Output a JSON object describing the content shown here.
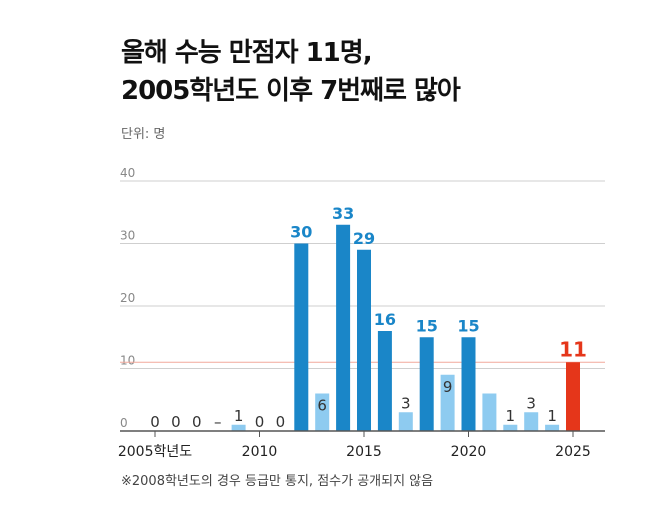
{
  "title_line1": "올해 수능 만점자 11명,",
  "title_line2": "2005학년도 이후 7번째로 많아",
  "unit_label": "단위: 명",
  "footnote": "※2008학년도의 경우 등급만 통지, 점수가 공개되지 않음",
  "colors": {
    "dark_blue": "#1a86c8",
    "light_blue": "#8ecbf0",
    "highlight_red": "#e5361a",
    "label_blue": "#1a86c8",
    "label_gray": "#333333",
    "grid": "#cfcfcf",
    "axis_text": "#888888"
  },
  "chart_data": {
    "type": "bar",
    "categories": [
      "2005",
      "2006",
      "2007",
      "2008",
      "2009",
      "2010",
      "2011",
      "2012",
      "2013",
      "2014",
      "2015",
      "2016",
      "2017",
      "2018",
      "2019",
      "2020",
      "2021",
      "2022",
      "2023",
      "2024",
      "2025"
    ],
    "values": [
      0,
      0,
      0,
      null,
      1,
      0,
      0,
      30,
      6,
      33,
      29,
      16,
      3,
      15,
      9,
      15,
      6,
      1,
      3,
      1,
      11
    ],
    "data_labels": [
      "0",
      "0",
      "0",
      "–",
      "1",
      "0",
      "0",
      "30",
      "6",
      "33",
      "29",
      "16",
      "3",
      "15",
      "9",
      "15",
      "",
      "1",
      "3",
      "1",
      "11"
    ],
    "bar_style": [
      "light",
      "light",
      "light",
      "none",
      "light",
      "light",
      "light",
      "dark",
      "light",
      "dark",
      "dark",
      "dark",
      "light",
      "dark",
      "light",
      "dark",
      "light",
      "light",
      "light",
      "light",
      "red"
    ],
    "xtick_labels": [
      {
        "year": "2005",
        "text": "2005학년도"
      },
      {
        "year": "2010",
        "text": "2010"
      },
      {
        "year": "2015",
        "text": "2015"
      },
      {
        "year": "2020",
        "text": "2020"
      },
      {
        "year": "2025",
        "text": "2025"
      }
    ],
    "yticks": [
      0,
      10,
      20,
      30,
      40
    ],
    "ylim": [
      0,
      40
    ],
    "grid": true,
    "reference_line": {
      "value": 11
    }
  }
}
